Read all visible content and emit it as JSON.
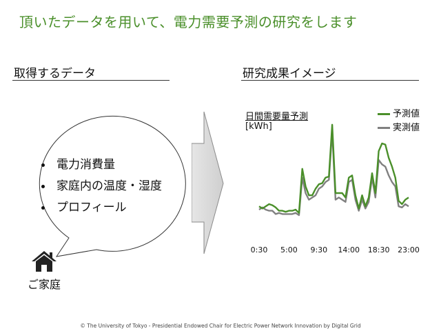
{
  "slide": {
    "title": "頂いたデータを用いて、電力需要予測の研究をします",
    "left_section_title": "取得するデータ",
    "right_section_title": "研究成果イメージ",
    "bullets": [
      "電力消費量",
      "家庭内の温度・湿度",
      "プロフィール"
    ],
    "home_label": "ご家庭",
    "footer": "© The University of Tokyo - Presidential Endowed Chair for Electric Power Network Innovation by Digital Grid",
    "colors": {
      "title": "#4a8f2a",
      "forecast": "#4a8f2a",
      "actual": "#808080"
    }
  },
  "chart_data": {
    "type": "line",
    "title": "日間需要量予測",
    "ylabel": "[kWh]",
    "legend_position": "top-right",
    "x_tick_labels": [
      "0:30",
      "5:00",
      "9:30",
      "14:00",
      "18:30",
      "23:00"
    ],
    "x_tick_indices": [
      0,
      9,
      18,
      27,
      36,
      45
    ],
    "ylim": [
      0,
      1
    ],
    "series": [
      {
        "name": "予測値",
        "color": "#4a8f2a",
        "values": [
          0.18,
          0.16,
          0.18,
          0.2,
          0.19,
          0.17,
          0.14,
          0.14,
          0.13,
          0.14,
          0.14,
          0.15,
          0.12,
          0.52,
          0.36,
          0.28,
          0.28,
          0.34,
          0.38,
          0.39,
          0.44,
          0.45,
          0.92,
          0.3,
          0.3,
          0.3,
          0.26,
          0.44,
          0.46,
          0.28,
          0.16,
          0.28,
          0.18,
          0.26,
          0.48,
          0.3,
          0.68,
          0.75,
          0.74,
          0.62,
          0.54,
          0.44,
          0.23,
          0.2,
          0.24,
          0.26
        ]
      },
      {
        "name": "実測値",
        "color": "#808080",
        "values": [
          0.15,
          0.17,
          0.15,
          0.14,
          0.14,
          0.11,
          0.12,
          0.11,
          0.11,
          0.11,
          0.11,
          0.12,
          0.1,
          0.44,
          0.3,
          0.24,
          0.26,
          0.28,
          0.34,
          0.36,
          0.4,
          0.42,
          0.86,
          0.24,
          0.26,
          0.24,
          0.22,
          0.4,
          0.42,
          0.24,
          0.14,
          0.24,
          0.16,
          0.22,
          0.44,
          0.26,
          0.6,
          0.56,
          0.54,
          0.46,
          0.4,
          0.36,
          0.18,
          0.17,
          0.2,
          0.18
        ]
      }
    ]
  }
}
